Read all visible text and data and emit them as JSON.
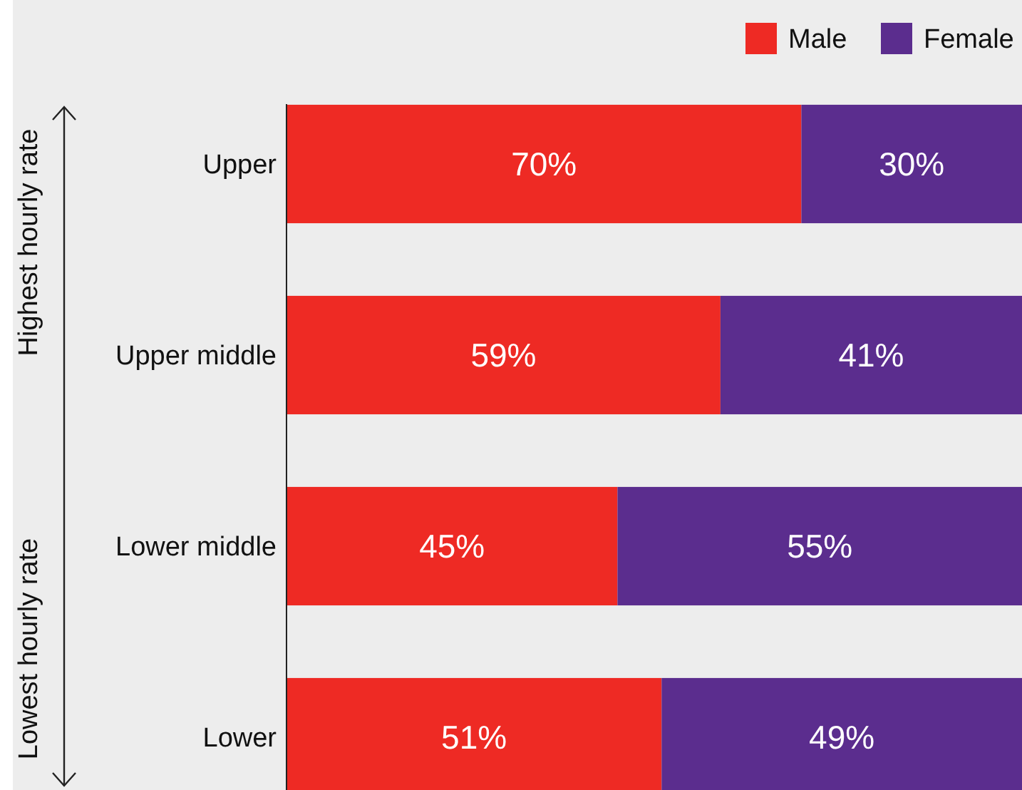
{
  "chart_data": {
    "type": "bar",
    "orientation": "horizontal",
    "stacked": true,
    "categories": [
      "Upper",
      "Upper middle",
      "Lower middle",
      "Lower"
    ],
    "series": [
      {
        "name": "Male",
        "color": "#ee2a24",
        "values": [
          70,
          59,
          45,
          51
        ],
        "value_labels": [
          "70%",
          "59%",
          "45%",
          "51%"
        ]
      },
      {
        "name": "Female",
        "color": "#5b2d8e",
        "values": [
          30,
          41,
          55,
          49
        ],
        "value_labels": [
          "30%",
          "41%",
          "55%",
          "49%"
        ]
      }
    ],
    "xlim": [
      0,
      100
    ],
    "tick_labels": "y",
    "legend": "top right",
    "annotations": [
      "Highest hourly rate",
      "Lowest hourly rate"
    ]
  }
}
